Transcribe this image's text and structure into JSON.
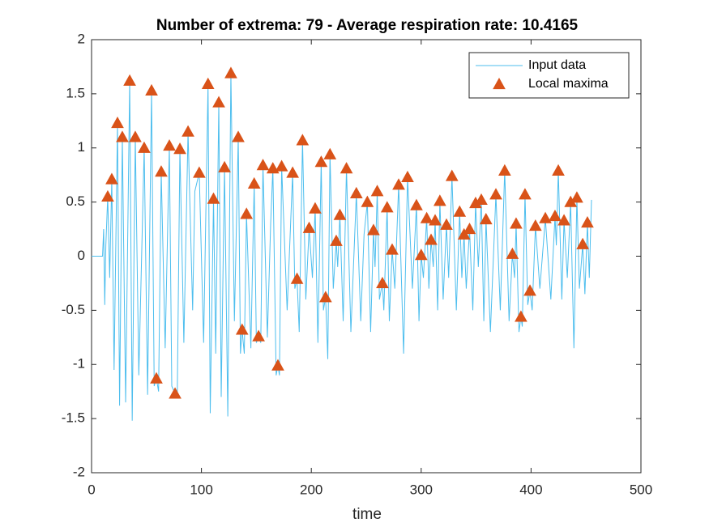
{
  "chart_data": {
    "type": "line",
    "title": "Number of extrema: 79 - Average respiration rate: 10.4165",
    "xlabel": "time",
    "xlim": [
      0,
      500
    ],
    "xticks": [
      0,
      100,
      200,
      300,
      400,
      500
    ],
    "ylim": [
      -2,
      2
    ],
    "yticks": [
      -2,
      -1.5,
      -1,
      -0.5,
      0,
      0.5,
      1,
      1.5,
      2
    ],
    "legend": "northeast",
    "series": [
      {
        "name": "Input data",
        "type": "line",
        "color": "#4DBEEE",
        "x": [
          0,
          10,
          11,
          12,
          13,
          14.7,
          16.5,
          18.4,
          20.5,
          23.6,
          25.5,
          28,
          31,
          34.7,
          37,
          39.8,
          43,
          47.9,
          51,
          54.6,
          57,
          59,
          61,
          63.4,
          67,
          70.8,
          73,
          76,
          78,
          80.4,
          84,
          87.8,
          92,
          94,
          98,
          102,
          106,
          108,
          111,
          113,
          115.8,
          118,
          121,
          124,
          126.8,
          130,
          133.5,
          135.5,
          137,
          139,
          141,
          145,
          148,
          150,
          152,
          154,
          156,
          160,
          163,
          165,
          168,
          169.6,
          171,
          173,
          178,
          183,
          185,
          187,
          189,
          192,
          195,
          198,
          201,
          203.5,
          206,
          209,
          211,
          213,
          215,
          217,
          220,
          222.7,
          224,
          226,
          229,
          232,
          236,
          241,
          245,
          248,
          251,
          254,
          256.6,
          258,
          260,
          262,
          264.7,
          266,
          269,
          271,
          273.6,
          276,
          279.5,
          284,
          287.6,
          292,
          295.7,
          298,
          300,
          302,
          305,
          307,
          309,
          311,
          312.7,
          315,
          317,
          320,
          323,
          325,
          328,
          332,
          335,
          337,
          339,
          341,
          344,
          347,
          349.5,
          352,
          354.7,
          357,
          359,
          363,
          368,
          372,
          376,
          380,
          383,
          385,
          386.4,
          389,
          390.8,
          392,
          394.5,
          397,
          399,
          401,
          404,
          408,
          413,
          418,
          421.8,
          423,
          424.8,
          428,
          430,
          433,
          436,
          439,
          441.7,
          444,
          447,
          449,
          451.3,
          453,
          455
        ],
        "values": [
          0,
          0,
          0.25,
          -0.45,
          0.1,
          0.55,
          -0.2,
          0.71,
          -1.05,
          1.23,
          -1.38,
          1.1,
          -1.35,
          1.62,
          -1.52,
          1.1,
          -1.1,
          1.0,
          -1.28,
          1.53,
          -1.2,
          -1.13,
          -1.25,
          0.78,
          -0.85,
          1.02,
          -1.2,
          -1.27,
          -1.3,
          0.99,
          -0.8,
          1.15,
          -0.5,
          0.6,
          0.77,
          -0.8,
          1.59,
          -1.45,
          0.53,
          -0.9,
          1.42,
          -1.3,
          0.82,
          -1.48,
          1.69,
          -0.6,
          1.1,
          -0.9,
          -0.68,
          -0.9,
          0.39,
          -0.85,
          0.67,
          -0.8,
          -0.74,
          -0.8,
          0.84,
          -0.75,
          0.3,
          0.81,
          -1.1,
          -1.01,
          -1.1,
          0.83,
          -0.5,
          0.77,
          -0.3,
          -0.21,
          -0.7,
          1.07,
          -0.4,
          0.26,
          -0.2,
          0.44,
          -0.8,
          0.87,
          -0.5,
          -0.38,
          -0.95,
          0.94,
          -0.3,
          0.14,
          -0.1,
          0.38,
          -0.6,
          0.81,
          -0.7,
          0.58,
          -0.6,
          0.2,
          0.5,
          -0.7,
          0.24,
          -0.1,
          0.6,
          -0.4,
          -0.25,
          -0.5,
          0.45,
          -0.6,
          0.06,
          -0.3,
          0.66,
          -0.9,
          0.73,
          -0.3,
          0.47,
          -0.6,
          0.01,
          -0.2,
          0.35,
          -0.3,
          0.15,
          -0.1,
          0.33,
          -0.5,
          0.51,
          -0.4,
          0.29,
          -0.2,
          0.74,
          -0.5,
          0.41,
          -0.2,
          0.2,
          -0.3,
          0.25,
          -0.5,
          0.49,
          -0.1,
          0.52,
          -0.6,
          0.34,
          -0.7,
          0.57,
          -0.5,
          0.79,
          -0.6,
          0.02,
          -0.2,
          0.3,
          -0.7,
          -0.56,
          -0.65,
          0.57,
          -0.45,
          -0.32,
          -0.5,
          0.28,
          -0.3,
          0.35,
          -0.4,
          0.37,
          0.1,
          0.79,
          -0.4,
          0.33,
          -0.2,
          0.5,
          -0.85,
          0.54,
          -0.3,
          0.11,
          -0.35,
          0.31,
          -0.2,
          0.52
        ]
      },
      {
        "name": "Local maxima",
        "type": "scatter",
        "color": "#D95319",
        "marker": "triangle",
        "x": [
          14.7,
          18.4,
          23.6,
          28,
          34.7,
          39.8,
          47.9,
          54.6,
          59,
          63.4,
          70.8,
          76,
          80.4,
          87.8,
          98,
          106,
          111,
          115.8,
          121,
          126.8,
          133.5,
          137,
          141,
          148,
          152,
          156,
          165,
          169.6,
          173,
          183,
          187,
          192,
          198,
          203.5,
          209,
          213,
          217,
          222.7,
          226,
          232,
          241,
          251,
          256.6,
          260,
          264.7,
          269,
          273.6,
          279.5,
          287.6,
          295.7,
          300,
          305,
          309,
          312.7,
          317,
          323,
          328,
          335,
          339,
          344,
          349.5,
          354.7,
          359,
          368,
          376,
          383,
          386.4,
          390.8,
          394.5,
          399,
          404,
          413,
          421.8,
          424.8,
          430,
          436,
          441.7,
          447,
          451.3
        ],
        "values": [
          0.55,
          0.71,
          1.23,
          1.1,
          1.62,
          1.1,
          1.0,
          1.53,
          -1.13,
          0.78,
          1.02,
          -1.27,
          0.99,
          1.15,
          0.77,
          1.59,
          0.53,
          1.42,
          0.82,
          1.69,
          1.1,
          -0.68,
          0.39,
          0.67,
          -0.74,
          0.84,
          0.81,
          -1.01,
          0.83,
          0.77,
          -0.21,
          1.07,
          0.26,
          0.44,
          0.87,
          -0.38,
          0.94,
          0.14,
          0.38,
          0.81,
          0.58,
          0.5,
          0.24,
          0.6,
          -0.25,
          0.45,
          0.06,
          0.66,
          0.73,
          0.47,
          0.01,
          0.35,
          0.15,
          0.33,
          0.51,
          0.29,
          0.74,
          0.41,
          0.2,
          0.25,
          0.49,
          0.52,
          0.34,
          0.57,
          0.79,
          0.02,
          0.3,
          -0.56,
          0.57,
          -0.32,
          0.28,
          0.35,
          0.37,
          0.79,
          0.33,
          0.5,
          0.54,
          0.11,
          0.31
        ]
      }
    ]
  }
}
